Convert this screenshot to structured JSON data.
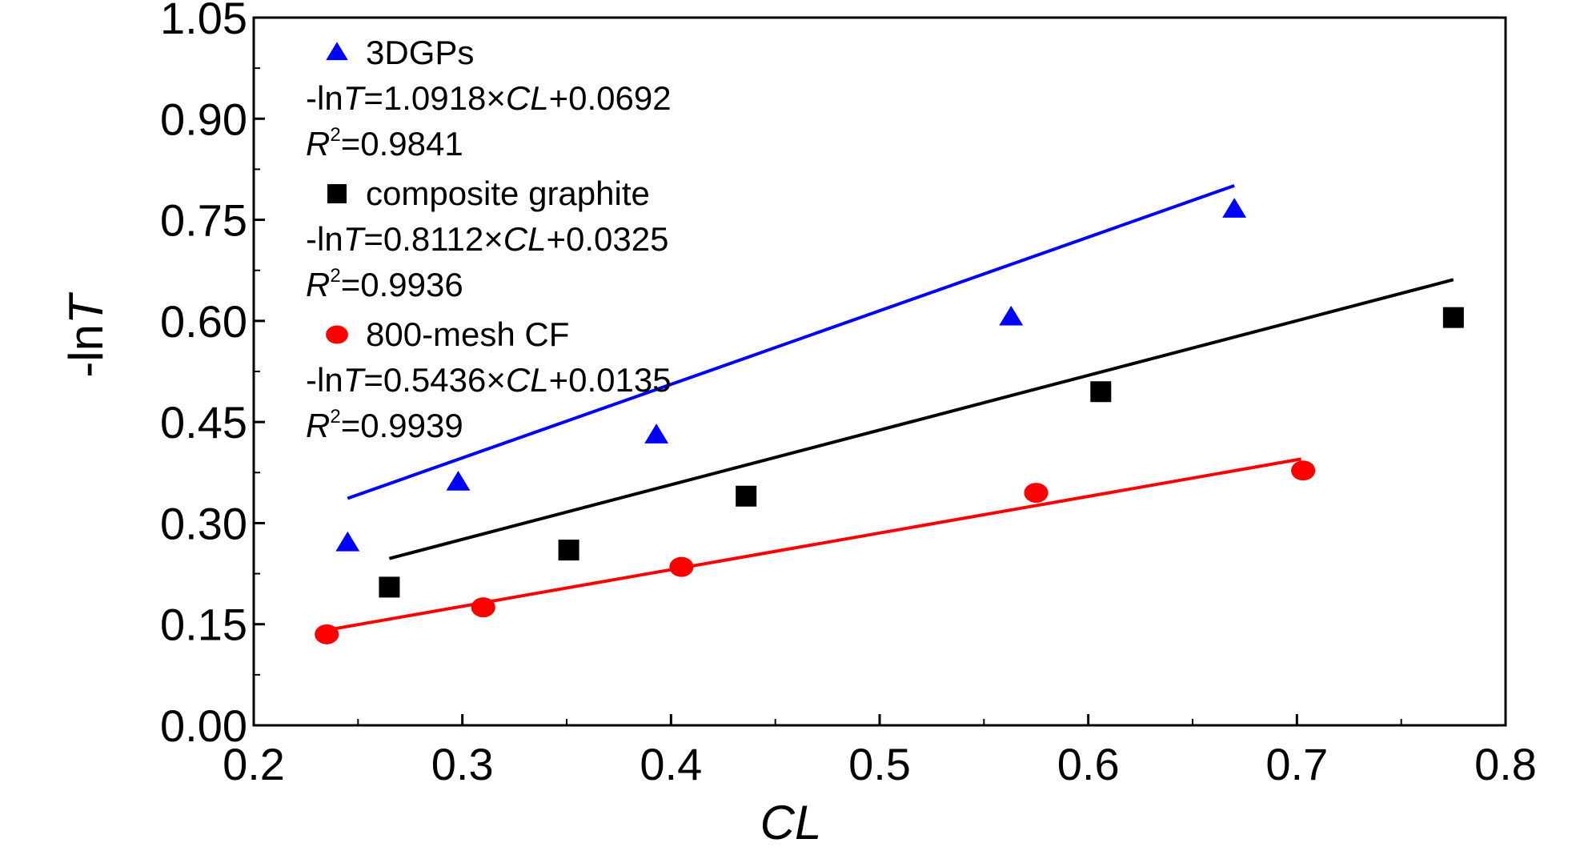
{
  "chart_data": {
    "type": "scatter",
    "xlabel": "CL",
    "ylabel_prefix": "-ln",
    "ylabel_var": "T",
    "xlim": [
      0.2,
      0.8
    ],
    "ylim": [
      0.0,
      1.05
    ],
    "x_ticks": [
      "0.2",
      "0.3",
      "0.4",
      "0.5",
      "0.6",
      "0.7",
      "0.8"
    ],
    "y_ticks": [
      "0.00",
      "0.15",
      "0.30",
      "0.45",
      "0.60",
      "0.75",
      "0.90",
      "1.05"
    ],
    "grid": false,
    "legend_position": "top-left",
    "series": [
      {
        "name": "3DGPs",
        "marker": "triangle",
        "color": "#0000ff",
        "equation": {
          "prefix": "-ln",
          "var": "T",
          "eq": "=1.0918",
          "times": "×",
          "cl": "CL",
          "rest": "+0.0692"
        },
        "r2": {
          "r": "R",
          "sup": "2",
          "val": "=0.9841"
        },
        "slope": 1.0918,
        "intercept": 0.0692,
        "fit_x": [
          0.245,
          0.67
        ],
        "x": [
          0.245,
          0.298,
          0.393,
          0.563,
          0.67
        ],
        "y": [
          0.27,
          0.36,
          0.43,
          0.605,
          0.765
        ]
      },
      {
        "name": "composite graphite",
        "marker": "square",
        "color": "#000000",
        "equation": {
          "prefix": "-ln",
          "var": "T",
          "eq": "=0.8112",
          "times": "×",
          "cl": "CL",
          "rest": "+0.0325"
        },
        "r2": {
          "r": "R",
          "sup": "2",
          "val": "=0.9936"
        },
        "slope": 0.8112,
        "intercept": 0.0325,
        "fit_x": [
          0.265,
          0.775
        ],
        "x": [
          0.265,
          0.351,
          0.436,
          0.606,
          0.775
        ],
        "y": [
          0.205,
          0.26,
          0.34,
          0.495,
          0.605
        ]
      },
      {
        "name": "800-mesh CF",
        "marker": "circle",
        "color": "#ff0000",
        "equation": {
          "prefix": "-ln",
          "var": "T",
          "eq": "=0.5436",
          "times": "×",
          "cl": "CL",
          "rest": "+0.0135"
        },
        "r2": {
          "r": "R",
          "sup": "2",
          "val": "=0.9939"
        },
        "slope": 0.5436,
        "intercept": 0.0135,
        "fit_x": [
          0.235,
          0.702
        ],
        "x": [
          0.235,
          0.31,
          0.405,
          0.575,
          0.703
        ],
        "y": [
          0.135,
          0.175,
          0.235,
          0.345,
          0.378
        ]
      }
    ]
  }
}
